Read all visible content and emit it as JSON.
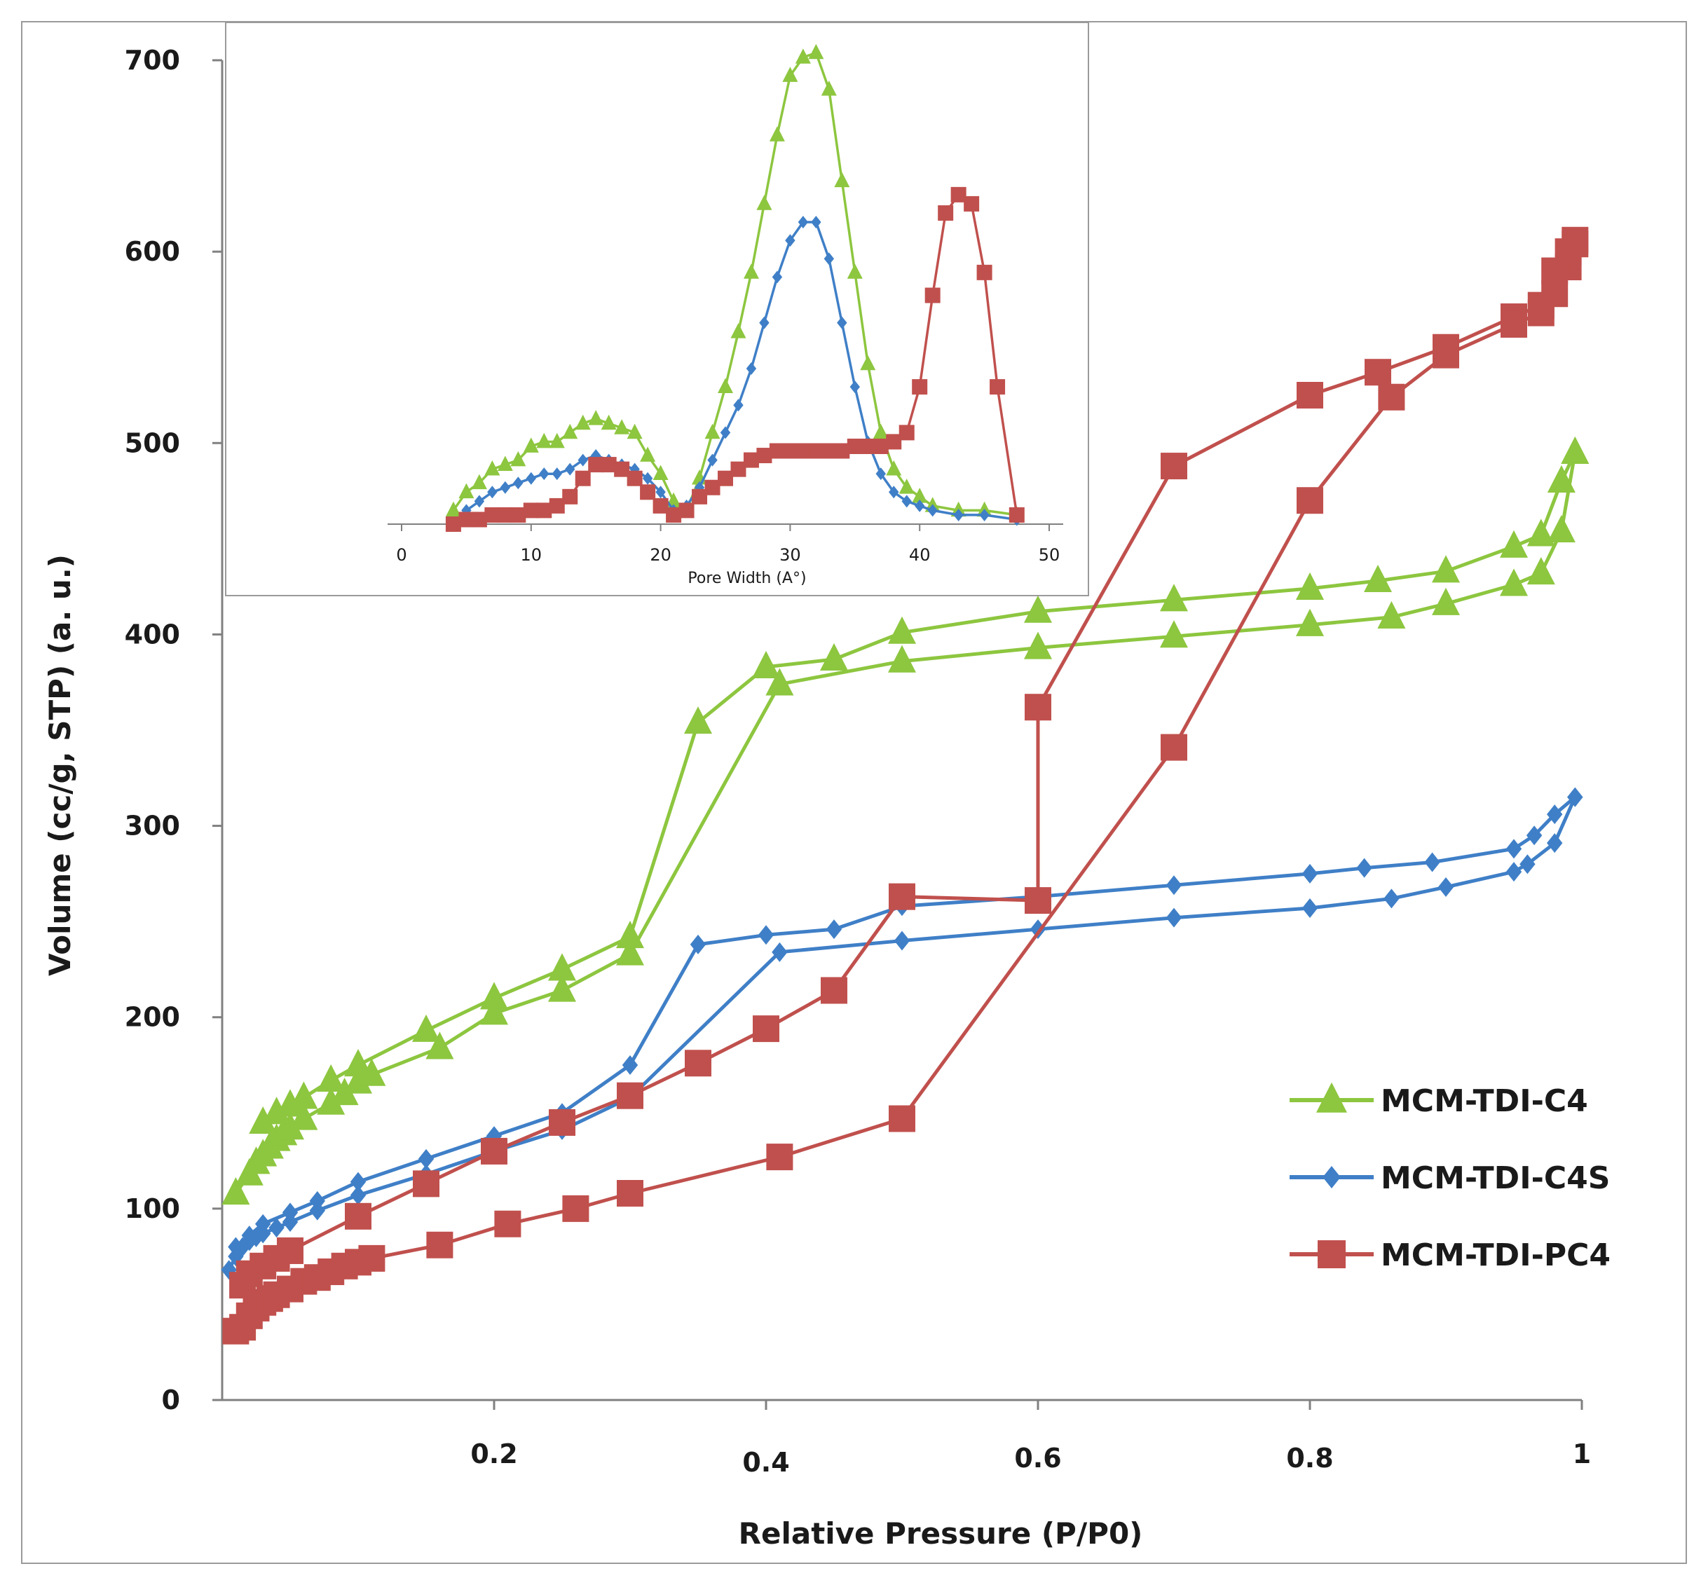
{
  "chart_data": [
    {
      "type": "line",
      "title": "",
      "xlabel": "Relative Pressure (P/P0)",
      "ylabel": "Volume (cc/g, STP) (a. u.)",
      "xlim": [
        0,
        1
      ],
      "ylim": [
        0,
        700
      ],
      "xticks": [
        0.2,
        0.4,
        0.6,
        0.8,
        1
      ],
      "xtick_labels": [
        "0.2",
        "0.4",
        "0.6",
        "0.8",
        "1"
      ],
      "yticks": [
        0,
        100,
        200,
        300,
        400,
        500,
        600,
        700
      ],
      "ytick_labels": [
        "0",
        "100",
        "200",
        "300",
        "400",
        "500",
        "600",
        "700"
      ],
      "grid": false,
      "legend_position": "bottom-right",
      "series": [
        {
          "name": "MCM-TDI-C4",
          "color": "#8dc63f",
          "marker": "triangle",
          "adsorption": {
            "x": [
              0.01,
              0.02,
              0.025,
              0.03,
              0.035,
              0.04,
              0.045,
              0.05,
              0.06,
              0.08,
              0.09,
              0.1,
              0.11,
              0.16,
              0.2,
              0.25,
              0.3,
              0.41,
              0.5,
              0.6,
              0.7,
              0.8,
              0.86,
              0.9,
              0.95,
              0.97,
              0.985,
              0.995
            ],
            "y": [
              108,
              118,
              124,
              128,
              132,
              136,
              139,
              142,
              147,
              155,
              160,
              166,
              170,
              184,
              202,
              214,
              233,
              374,
              386,
              393,
              399,
              405,
              409,
              416,
              426,
              432,
              454,
              495
            ]
          },
          "desorption": {
            "x": [
              0.995,
              0.985,
              0.97,
              0.95,
              0.9,
              0.85,
              0.8,
              0.7,
              0.6,
              0.5,
              0.45,
              0.4,
              0.35,
              0.3,
              0.25,
              0.2,
              0.15,
              0.1,
              0.08,
              0.06,
              0.05,
              0.04,
              0.03
            ],
            "y": [
              495,
              480,
              452,
              446,
              433,
              428,
              424,
              418,
              412,
              401,
              387,
              383,
              354,
              242,
              225,
              210,
              193,
              175,
              167,
              158,
              154,
              150,
              145
            ]
          }
        },
        {
          "name": "MCM-TDI-C4S",
          "color": "#3f7fc7",
          "marker": "diamond",
          "adsorption": {
            "x": [
              0.005,
              0.01,
              0.015,
              0.02,
              0.025,
              0.03,
              0.04,
              0.05,
              0.07,
              0.1,
              0.15,
              0.2,
              0.25,
              0.3,
              0.41,
              0.5,
              0.6,
              0.7,
              0.8,
              0.86,
              0.9,
              0.95,
              0.96,
              0.98,
              0.995
            ],
            "y": [
              68,
              75,
              80,
              83,
              85,
              87,
              90,
              93,
              99,
              107,
              118,
              130,
              141,
              158,
              234,
              240,
              246,
              252,
              257,
              262,
              268,
              276,
              280,
              291,
              315
            ]
          },
          "desorption": {
            "x": [
              0.995,
              0.98,
              0.965,
              0.95,
              0.89,
              0.84,
              0.8,
              0.7,
              0.6,
              0.5,
              0.45,
              0.4,
              0.35,
              0.3,
              0.25,
              0.2,
              0.15,
              0.1,
              0.07,
              0.05,
              0.03,
              0.02,
              0.01
            ],
            "y": [
              315,
              306,
              295,
              288,
              281,
              278,
              275,
              269,
              263,
              258,
              246,
              243,
              238,
              175,
              150,
              138,
              126,
              114,
              104,
              98,
              92,
              86,
              80
            ]
          }
        },
        {
          "name": "MCM-TDI-PC4",
          "color": "#c0504d",
          "marker": "square",
          "adsorption": {
            "x": [
              0.01,
              0.015,
              0.02,
              0.025,
              0.03,
              0.035,
              0.04,
              0.05,
              0.06,
              0.07,
              0.08,
              0.09,
              0.1,
              0.11,
              0.16,
              0.21,
              0.26,
              0.3,
              0.41,
              0.5,
              0.7,
              0.8,
              0.86,
              0.9,
              0.95,
              0.97,
              0.98,
              0.99,
              0.995
            ],
            "y": [
              36,
              38,
              44,
              48,
              51,
              53,
              55,
              58,
              62,
              64,
              67,
              70,
              72,
              74,
              81,
              92,
              100,
              108,
              127,
              147,
              341,
              470,
              524,
              546,
              562,
              568,
              578,
              592,
              604
            ]
          },
          "desorption": {
            "x": [
              0.995,
              0.99,
              0.98,
              0.97,
              0.95,
              0.9,
              0.85,
              0.8,
              0.7,
              0.6,
              0.6,
              0.5,
              0.45,
              0.4,
              0.35,
              0.3,
              0.25,
              0.2,
              0.15,
              0.1,
              0.05,
              0.04,
              0.03,
              0.02,
              0.015
            ],
            "y": [
              606,
              600,
              590,
              572,
              566,
              550,
              537,
              525,
              488,
              362,
              261,
              263,
              214,
              194,
              176,
              159,
              145,
              130,
              113,
              96,
              78,
              74,
              70,
              66,
              60
            ]
          }
        }
      ]
    },
    {
      "type": "line",
      "title": "",
      "xlabel": "Pore Width (A°)",
      "ylabel": "",
      "xlim": [
        0,
        50
      ],
      "ylim": [
        0,
        1
      ],
      "xticks": [
        0,
        10,
        20,
        30,
        40,
        50
      ],
      "xtick_labels": [
        "0",
        "10",
        "20",
        "30",
        "40",
        "50"
      ],
      "grid": false,
      "legend_position": "none",
      "series": [
        {
          "name": "MCM-TDI-C4",
          "color": "#8dc63f",
          "marker": "triangle",
          "x": [
            4,
            5,
            6,
            7,
            8,
            9,
            10,
            11,
            12,
            13,
            14,
            15,
            16,
            17,
            18,
            19,
            20,
            21,
            22,
            23,
            24,
            25,
            26,
            27,
            28,
            29,
            30,
            31,
            32,
            33,
            34,
            35,
            36,
            37,
            38,
            39,
            40,
            41,
            43,
            45,
            47.5
          ],
          "y": [
            0.03,
            0.07,
            0.09,
            0.12,
            0.13,
            0.14,
            0.17,
            0.18,
            0.18,
            0.2,
            0.22,
            0.23,
            0.22,
            0.21,
            0.2,
            0.15,
            0.11,
            0.05,
            0.03,
            0.1,
            0.2,
            0.3,
            0.42,
            0.55,
            0.7,
            0.85,
            0.98,
            1.02,
            1.03,
            0.95,
            0.75,
            0.55,
            0.35,
            0.2,
            0.12,
            0.08,
            0.06,
            0.04,
            0.03,
            0.03,
            0.02
          ]
        },
        {
          "name": "MCM-TDI-C4S",
          "color": "#3f7fc7",
          "marker": "diamond",
          "x": [
            4,
            5,
            6,
            7,
            8,
            9,
            10,
            11,
            12,
            13,
            14,
            15,
            16,
            17,
            18,
            19,
            20,
            21,
            22,
            23,
            24,
            25,
            26,
            27,
            28,
            29,
            30,
            31,
            32,
            33,
            34,
            35,
            36,
            37,
            38,
            39,
            40,
            41,
            43,
            45,
            47.5
          ],
          "y": [
            0.0,
            0.03,
            0.05,
            0.07,
            0.08,
            0.09,
            0.1,
            0.11,
            0.11,
            0.12,
            0.14,
            0.15,
            0.14,
            0.13,
            0.12,
            0.1,
            0.07,
            0.03,
            0.04,
            0.08,
            0.14,
            0.2,
            0.26,
            0.34,
            0.44,
            0.54,
            0.62,
            0.66,
            0.66,
            0.58,
            0.44,
            0.3,
            0.18,
            0.11,
            0.07,
            0.05,
            0.04,
            0.03,
            0.02,
            0.02,
            0.01
          ]
        },
        {
          "name": "MCM-TDI-PC4",
          "color": "#c0504d",
          "marker": "square",
          "x": [
            4,
            5,
            6,
            7,
            8,
            9,
            10,
            11,
            12,
            13,
            14,
            15,
            16,
            17,
            18,
            19,
            20,
            21,
            22,
            23,
            24,
            25,
            26,
            27,
            28,
            29,
            30,
            31,
            32,
            33,
            34,
            35,
            36,
            37,
            38,
            39,
            40,
            41,
            42,
            43,
            44,
            45,
            46,
            47.5
          ],
          "y": [
            0.0,
            0.01,
            0.01,
            0.02,
            0.02,
            0.02,
            0.03,
            0.03,
            0.04,
            0.06,
            0.1,
            0.13,
            0.13,
            0.12,
            0.1,
            0.07,
            0.04,
            0.02,
            0.03,
            0.06,
            0.08,
            0.1,
            0.12,
            0.14,
            0.15,
            0.16,
            0.16,
            0.16,
            0.16,
            0.16,
            0.16,
            0.17,
            0.17,
            0.17,
            0.18,
            0.2,
            0.3,
            0.5,
            0.68,
            0.72,
            0.7,
            0.55,
            0.3,
            0.02
          ]
        }
      ]
    }
  ]
}
